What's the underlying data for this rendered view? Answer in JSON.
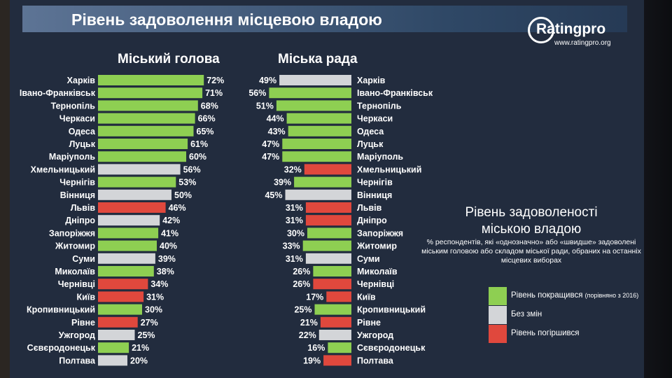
{
  "title": "Рівень задоволення місцевою владою",
  "logo": {
    "text": "Ratingpro",
    "url": "www.ratingpro.org"
  },
  "colors": {
    "improved": "#8ecf52",
    "unchanged": "#d3d5d8",
    "worsened": "#e0483d",
    "background": "#222c3e"
  },
  "legend": {
    "title_line1": "Рівень задоволеності",
    "title_line2": "міською владою",
    "subtitle": "% респондентів, які «однозначно» або «швидше» задоволені міським головою або складом міської ради, обраних на останніх місцевих виборах",
    "items": [
      {
        "label": "Рівень покращився",
        "note": "(порівняно з 2016)",
        "status": "improved"
      },
      {
        "label": "Без змін",
        "note": "",
        "status": "unchanged"
      },
      {
        "label": "Рівень погіршився",
        "note": "",
        "status": "worsened"
      }
    ]
  },
  "chart_data": [
    {
      "type": "bar",
      "orientation": "horizontal",
      "title": "Міський голова",
      "unit": "%",
      "xlim": [
        0,
        100
      ],
      "categories": [
        "Харків",
        "Івано-Франківськ",
        "Тернопіль",
        "Черкаси",
        "Одеса",
        "Луцьк",
        "Маріуполь",
        "Хмельницький",
        "Чернігів",
        "Вінниця",
        "Львів",
        "Дніпро",
        "Запоріжжя",
        "Житомир",
        "Суми",
        "Миколаїв",
        "Чернівці",
        "Київ",
        "Кропивницький",
        "Рівне",
        "Ужгород",
        "Сєвєродонецьк",
        "Полтава"
      ],
      "values": [
        72,
        71,
        68,
        66,
        65,
        61,
        60,
        56,
        53,
        50,
        46,
        42,
        41,
        40,
        39,
        38,
        34,
        31,
        30,
        27,
        25,
        21,
        20
      ],
      "status": [
        "improved",
        "improved",
        "improved",
        "improved",
        "improved",
        "improved",
        "improved",
        "unchanged",
        "improved",
        "unchanged",
        "worsened",
        "unchanged",
        "improved",
        "improved",
        "unchanged",
        "improved",
        "worsened",
        "worsened",
        "improved",
        "worsened",
        "unchanged",
        "improved",
        "unchanged"
      ]
    },
    {
      "type": "bar",
      "orientation": "horizontal",
      "title": "Міська рада",
      "unit": "%",
      "xlim": [
        0,
        100
      ],
      "categories": [
        "Харків",
        "Івано-Франківськ",
        "Тернопіль",
        "Черкаси",
        "Одеса",
        "Луцьк",
        "Маріуполь",
        "Хмельницький",
        "Чернігів",
        "Вінниця",
        "Львів",
        "Дніпро",
        "Запоріжжя",
        "Житомир",
        "Суми",
        "Миколаїв",
        "Чернівці",
        "Київ",
        "Кропивницький",
        "Рівне",
        "Ужгород",
        "Сєвєродонецьк",
        "Полтава"
      ],
      "values": [
        49,
        56,
        51,
        44,
        43,
        47,
        47,
        32,
        39,
        45,
        31,
        31,
        30,
        33,
        31,
        26,
        26,
        17,
        25,
        21,
        22,
        16,
        19
      ],
      "status": [
        "unchanged",
        "improved",
        "improved",
        "improved",
        "improved",
        "improved",
        "improved",
        "worsened",
        "improved",
        "unchanged",
        "worsened",
        "worsened",
        "improved",
        "improved",
        "unchanged",
        "improved",
        "worsened",
        "worsened",
        "improved",
        "worsened",
        "unchanged",
        "improved",
        "worsened"
      ]
    }
  ]
}
